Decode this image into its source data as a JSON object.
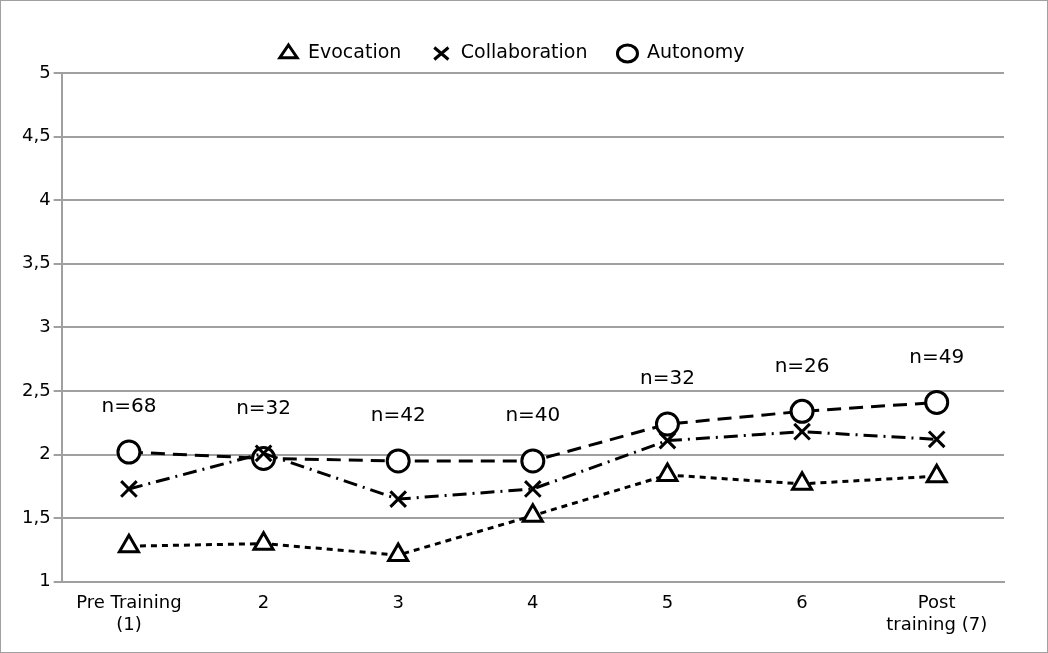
{
  "chart_data": {
    "type": "line",
    "categories": [
      "Pre Training (1)",
      "2",
      "3",
      "4",
      "5",
      "6",
      "Post training (7)"
    ],
    "series": [
      {
        "name": "Evocation",
        "color": "#000000",
        "marker": "triangle",
        "line_style": "dashed",
        "values": [
          1.28,
          1.3,
          1.21,
          1.52,
          1.84,
          1.77,
          1.83
        ]
      },
      {
        "name": "Collaboration",
        "color": "#000000",
        "marker": "cross",
        "line_style": "dashed",
        "values": [
          1.73,
          2.01,
          1.65,
          1.73,
          2.11,
          2.18,
          2.12
        ]
      },
      {
        "name": "Autonomy",
        "color": "#000000",
        "marker": "circle",
        "line_style": "dashed",
        "values": [
          2.02,
          1.97,
          1.95,
          1.95,
          2.24,
          2.34,
          2.41
        ]
      }
    ],
    "ylim": [
      1,
      5
    ],
    "yticks": [
      1,
      {
        "value": 1.5,
        "label": "1,5"
      },
      2,
      {
        "value": 2.5,
        "label": "2,5"
      },
      3,
      {
        "value": 3.5,
        "label": "3,5"
      },
      4,
      {
        "value": 4.5,
        "label": "4,5"
      },
      5
    ],
    "grid": "y",
    "legend": "top",
    "annotations": [
      "n=68",
      "n=32",
      "n=42",
      "n=40",
      "n=32",
      "n=26",
      "n=49"
    ]
  }
}
